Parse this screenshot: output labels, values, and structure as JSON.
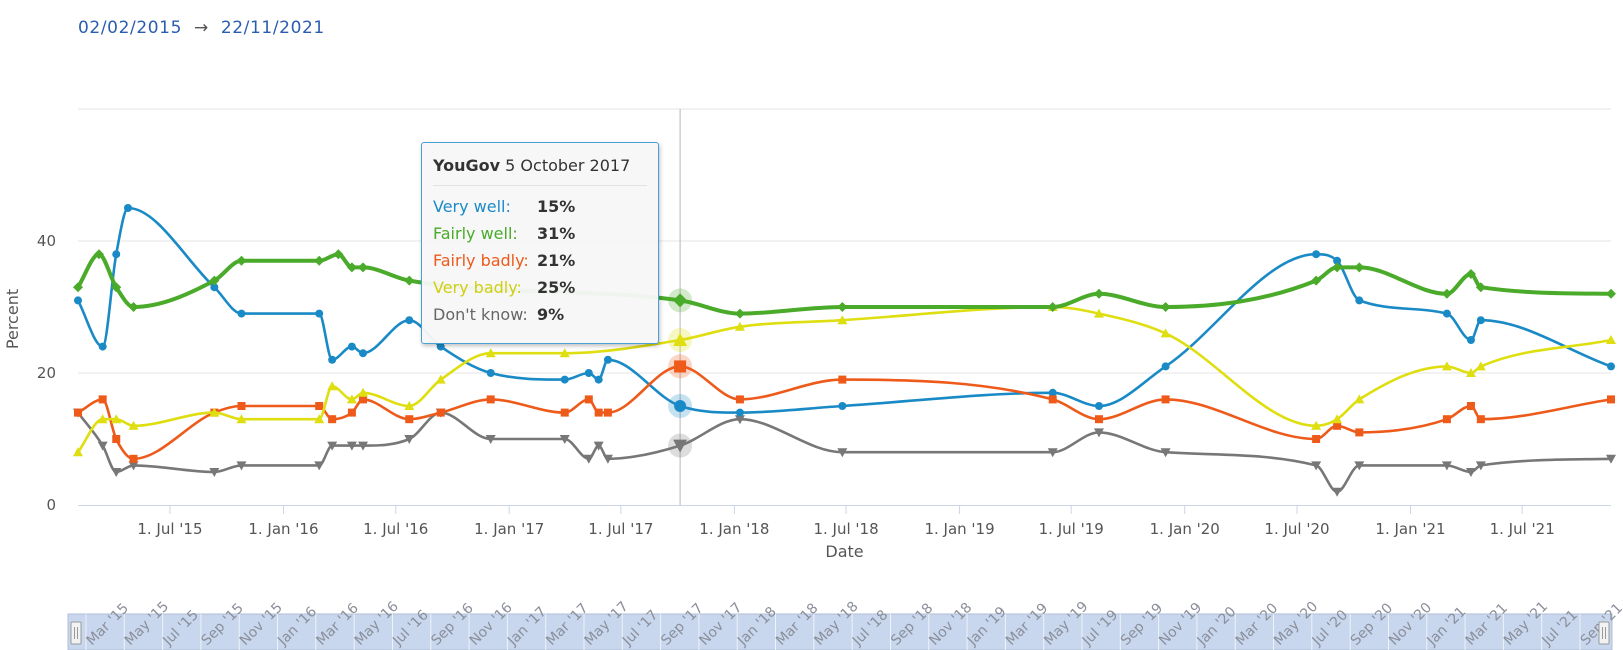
{
  "date_range": {
    "from": "02/02/2015",
    "arrow": "→",
    "to": "22/11/2021"
  },
  "colors": {
    "very_well": "#1a8ac6",
    "fairly_well": "#4aaa2a",
    "fairly_badly": "#ee5a1a",
    "very_badly": "#dede10",
    "dont_know": "#777777"
  },
  "tooltip": {
    "pollster": "YouGov",
    "date": "5 October 2017",
    "rows": [
      {
        "label": "Very well:",
        "value": "15%"
      },
      {
        "label": "Fairly well:",
        "value": "31%"
      },
      {
        "label": "Fairly badly:",
        "value": "21%"
      },
      {
        "label": "Very badly:",
        "value": "25%"
      },
      {
        "label": "Don't know:",
        "value": "9%"
      }
    ]
  },
  "navigator_labels": [
    "Mar '15",
    "May '15",
    "Jul '15",
    "Sep '15",
    "Nov '15",
    "Jan '16",
    "Mar '16",
    "May '16",
    "Jul '16",
    "Sep '16",
    "Nov '16",
    "Jan '17",
    "Mar '17",
    "May '17",
    "Jul '17",
    "Sep '17",
    "Nov '17",
    "Jan '18",
    "Mar '18",
    "May '18",
    "Jul '18",
    "Sep '18",
    "Nov '18",
    "Jan '19",
    "Mar '19",
    "May '19",
    "Jul '19",
    "Sep '19",
    "Nov '19",
    "Jan '20",
    "Mar '20",
    "May '20",
    "Jul '20",
    "Sep '20",
    "Nov '20",
    "Jan '21",
    "Mar '21",
    "May '21",
    "Jul '21",
    "Sep '21"
  ],
  "chart_data": {
    "type": "line",
    "xlabel": "Date",
    "ylabel": "Percent",
    "ylim": [
      0,
      60
    ],
    "yticks": [
      0,
      20,
      40
    ],
    "xlim": [
      "2015-02-02",
      "2021-11-22"
    ],
    "xticks": [
      {
        "date": "2015-07-01",
        "label": "1. Jul '15"
      },
      {
        "date": "2016-01-01",
        "label": "1. Jan '16"
      },
      {
        "date": "2016-07-01",
        "label": "1. Jul '16"
      },
      {
        "date": "2017-01-01",
        "label": "1. Jan '17"
      },
      {
        "date": "2017-07-01",
        "label": "1. Jul '17"
      },
      {
        "date": "2018-01-01",
        "label": "1. Jan '18"
      },
      {
        "date": "2018-07-01",
        "label": "1. Jul '18"
      },
      {
        "date": "2019-01-01",
        "label": "1. Jan '19"
      },
      {
        "date": "2019-07-01",
        "label": "1. Jul '19"
      },
      {
        "date": "2020-01-01",
        "label": "1. Jan '20"
      },
      {
        "date": "2020-07-01",
        "label": "1. Jul '20"
      },
      {
        "date": "2021-01-01",
        "label": "1. Jan '21"
      },
      {
        "date": "2021-07-01",
        "label": "1. Jul '21"
      }
    ],
    "grid": true,
    "highlight_date": "2017-10-05",
    "series": [
      {
        "name": "Very well",
        "marker": "circle",
        "color": "#1a8ac6",
        "x": [
          "2015-02-02",
          "2015-03-14",
          "2015-04-05",
          "2015-04-24",
          "2015-09-11",
          "2015-10-25",
          "2016-02-28",
          "2016-03-20",
          "2016-04-21",
          "2016-05-09",
          "2016-07-23",
          "2016-09-12",
          "2016-12-02",
          "2017-04-01",
          "2017-05-10",
          "2017-05-26",
          "2017-06-10",
          "2017-10-05",
          "2018-01-10",
          "2018-06-25",
          "2019-06-01",
          "2019-08-15",
          "2019-12-01",
          "2020-08-01",
          "2020-09-04",
          "2020-10-10",
          "2021-03-01",
          "2021-04-09",
          "2021-04-25",
          "2021-11-22"
        ],
        "y": [
          31,
          24,
          38,
          45,
          33,
          29,
          29,
          22,
          24,
          23,
          28,
          24,
          20,
          19,
          20,
          19,
          22,
          15,
          14,
          15,
          17,
          15,
          21,
          38,
          37,
          31,
          29,
          25,
          28,
          21
        ]
      },
      {
        "name": "Fairly well",
        "marker": "diamond",
        "color": "#4aaa2a",
        "x": [
          "2015-02-02",
          "2015-03-08",
          "2015-04-05",
          "2015-05-03",
          "2015-09-11",
          "2015-10-25",
          "2016-02-28",
          "2016-03-30",
          "2016-04-21",
          "2016-05-09",
          "2016-07-23",
          "2017-10-05",
          "2018-01-10",
          "2018-06-25",
          "2019-06-01",
          "2019-08-15",
          "2019-12-01",
          "2020-08-01",
          "2020-09-04",
          "2020-10-10",
          "2021-03-01",
          "2021-04-09",
          "2021-04-25",
          "2021-11-22"
        ],
        "y": [
          33,
          38,
          33,
          30,
          34,
          37,
          37,
          38,
          36,
          36,
          34,
          31,
          29,
          30,
          30,
          32,
          30,
          34,
          36,
          36,
          32,
          35,
          33,
          32
        ]
      },
      {
        "name": "Fairly badly",
        "marker": "square",
        "color": "#ee5a1a",
        "x": [
          "2015-02-02",
          "2015-03-14",
          "2015-04-05",
          "2015-05-03",
          "2015-09-11",
          "2015-10-25",
          "2016-02-28",
          "2016-03-20",
          "2016-04-21",
          "2016-05-09",
          "2016-07-23",
          "2016-09-12",
          "2016-12-02",
          "2017-04-01",
          "2017-05-10",
          "2017-05-26",
          "2017-06-10",
          "2017-10-05",
          "2018-01-10",
          "2018-06-25",
          "2019-06-01",
          "2019-08-15",
          "2019-12-01",
          "2020-08-01",
          "2020-09-04",
          "2020-10-10",
          "2021-03-01",
          "2021-04-09",
          "2021-04-25",
          "2021-11-22"
        ],
        "y": [
          14,
          16,
          10,
          7,
          14,
          15,
          15,
          13,
          14,
          16,
          13,
          14,
          16,
          14,
          16,
          14,
          14,
          21,
          16,
          19,
          16,
          13,
          16,
          10,
          12,
          11,
          13,
          15,
          13,
          16
        ]
      },
      {
        "name": "Very badly",
        "marker": "triangle",
        "color": "#dede10",
        "x": [
          "2015-02-02",
          "2015-03-14",
          "2015-04-05",
          "2015-05-03",
          "2015-09-11",
          "2015-10-25",
          "2016-02-28",
          "2016-03-20",
          "2016-04-21",
          "2016-05-09",
          "2016-07-23",
          "2016-09-12",
          "2016-12-02",
          "2017-04-01",
          "2017-10-05",
          "2018-01-10",
          "2018-06-25",
          "2019-06-01",
          "2019-08-15",
          "2019-12-01",
          "2020-08-01",
          "2020-09-04",
          "2020-10-10",
          "2021-03-01",
          "2021-04-09",
          "2021-04-25",
          "2021-11-22"
        ],
        "y": [
          8,
          13,
          13,
          12,
          14,
          13,
          13,
          18,
          16,
          17,
          15,
          19,
          23,
          23,
          25,
          27,
          28,
          30,
          29,
          26,
          12,
          13,
          16,
          21,
          20,
          21,
          25
        ]
      },
      {
        "name": "Don't know",
        "marker": "triangle-down",
        "color": "#777777",
        "x": [
          "2015-02-02",
          "2015-03-14",
          "2015-04-05",
          "2015-05-03",
          "2015-09-11",
          "2015-10-25",
          "2016-02-28",
          "2016-03-20",
          "2016-04-21",
          "2016-05-09",
          "2016-07-23",
          "2016-09-12",
          "2016-12-02",
          "2017-04-01",
          "2017-05-10",
          "2017-05-26",
          "2017-06-10",
          "2017-10-05",
          "2018-01-10",
          "2018-06-25",
          "2019-06-01",
          "2019-08-15",
          "2019-12-01",
          "2020-08-01",
          "2020-09-04",
          "2020-10-10",
          "2021-03-01",
          "2021-04-09",
          "2021-04-25",
          "2021-11-22"
        ],
        "y": [
          14,
          9,
          5,
          6,
          5,
          6,
          6,
          9,
          9,
          9,
          10,
          14,
          10,
          10,
          7,
          9,
          7,
          9,
          13,
          8,
          8,
          11,
          8,
          6,
          2,
          6,
          6,
          5,
          6,
          7
        ]
      }
    ]
  }
}
